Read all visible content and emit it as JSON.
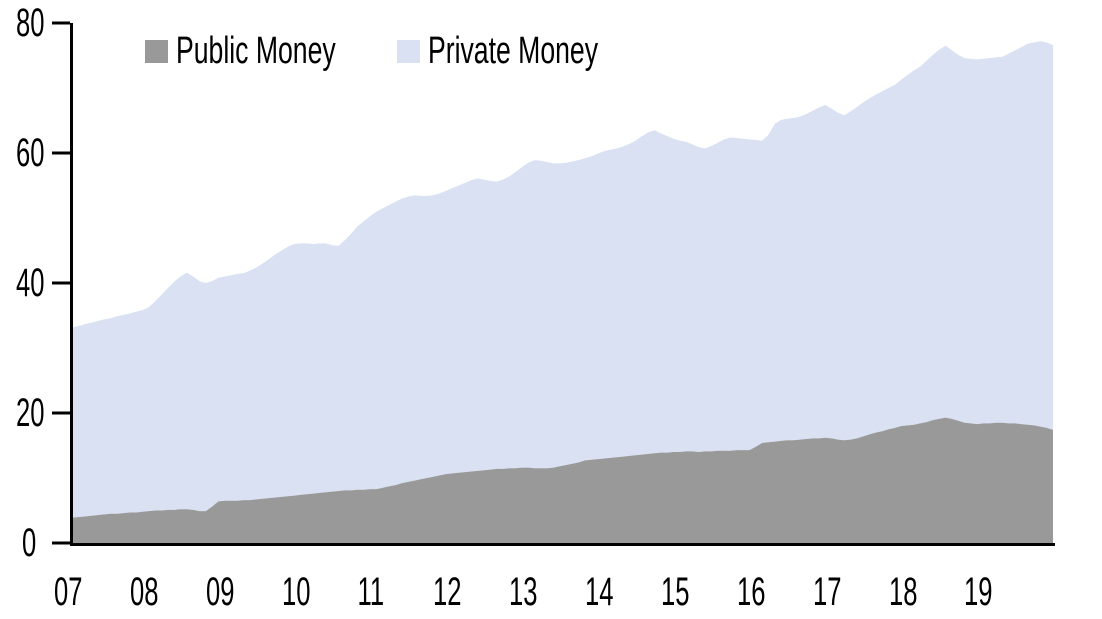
{
  "legend": {
    "items": [
      {
        "label": "Public Money",
        "color": "#999999"
      },
      {
        "label": "Private Money",
        "color": "#D9E1F2"
      }
    ]
  },
  "y_axis": {
    "tick_labels": [
      "0",
      "20",
      "40",
      "60",
      "80"
    ]
  },
  "x_axis": {
    "tick_labels": [
      "07",
      "08",
      "09",
      "10",
      "11",
      "12",
      "13",
      "14",
      "15",
      "16",
      "17",
      "18",
      "19"
    ]
  },
  "chart_data": {
    "type": "area",
    "stacked": true,
    "title": "",
    "xlabel": "",
    "ylabel": "",
    "x_unit": "monthly, Jan 2007 - Dec 2019",
    "x_tick_labels": [
      "07",
      "08",
      "09",
      "10",
      "11",
      "12",
      "13",
      "14",
      "15",
      "16",
      "17",
      "18",
      "19"
    ],
    "ylim": [
      0,
      80
    ],
    "yticks": [
      0,
      20,
      40,
      60,
      80
    ],
    "grid": false,
    "legend_position": "top-left-inside",
    "axis_color": "#000000",
    "background_color": "#ffffff",
    "series": [
      {
        "name": "Public Money",
        "color": "#999999",
        "values": [
          3.9,
          4.0,
          4.1,
          4.2,
          4.3,
          4.4,
          4.5,
          4.5,
          4.6,
          4.7,
          4.7,
          4.8,
          4.9,
          5.0,
          5.0,
          5.1,
          5.1,
          5.2,
          5.2,
          5.1,
          4.9,
          4.9,
          5.6,
          6.4,
          6.5,
          6.5,
          6.5,
          6.6,
          6.6,
          6.7,
          6.8,
          6.9,
          7.0,
          7.1,
          7.2,
          7.3,
          7.4,
          7.5,
          7.6,
          7.7,
          7.8,
          7.9,
          8.0,
          8.1,
          8.1,
          8.2,
          8.2,
          8.3,
          8.3,
          8.5,
          8.7,
          8.9,
          9.2,
          9.4,
          9.6,
          9.8,
          10.0,
          10.2,
          10.4,
          10.6,
          10.7,
          10.8,
          10.9,
          11.0,
          11.1,
          11.2,
          11.3,
          11.4,
          11.4,
          11.5,
          11.5,
          11.6,
          11.6,
          11.5,
          11.5,
          11.5,
          11.6,
          11.8,
          12.0,
          12.2,
          12.4,
          12.7,
          12.8,
          12.9,
          13.0,
          13.1,
          13.2,
          13.3,
          13.4,
          13.5,
          13.6,
          13.7,
          13.8,
          13.9,
          13.9,
          14.0,
          14.0,
          14.1,
          14.1,
          14.0,
          14.1,
          14.1,
          14.2,
          14.2,
          14.2,
          14.3,
          14.3,
          14.3,
          14.8,
          15.4,
          15.5,
          15.6,
          15.7,
          15.8,
          15.8,
          15.9,
          16.0,
          16.1,
          16.1,
          16.2,
          16.1,
          15.9,
          15.8,
          15.9,
          16.1,
          16.4,
          16.7,
          17.0,
          17.2,
          17.5,
          17.7,
          18.0,
          18.1,
          18.2,
          18.4,
          18.6,
          18.9,
          19.1,
          19.3,
          19.1,
          18.8,
          18.5,
          18.4,
          18.3,
          18.4,
          18.4,
          18.5,
          18.5,
          18.4,
          18.4,
          18.3,
          18.2,
          18.1,
          17.9,
          17.7,
          17.4
        ]
      },
      {
        "name": "Private Money",
        "color": "#D9E1F2",
        "values": [
          29.3,
          29.4,
          29.6,
          29.7,
          29.9,
          30.0,
          30.1,
          30.4,
          30.5,
          30.6,
          30.9,
          31.0,
          31.4,
          32.2,
          33.2,
          34.1,
          35.1,
          35.8,
          36.4,
          35.9,
          35.4,
          35.1,
          34.7,
          34.4,
          34.5,
          34.7,
          34.9,
          34.9,
          35.3,
          35.7,
          36.2,
          36.8,
          37.4,
          37.9,
          38.4,
          38.7,
          38.7,
          38.6,
          38.4,
          38.4,
          38.3,
          37.9,
          37.7,
          38.5,
          39.5,
          40.5,
          41.3,
          42.0,
          42.7,
          43.0,
          43.3,
          43.6,
          43.8,
          43.9,
          43.9,
          43.6,
          43.4,
          43.3,
          43.4,
          43.6,
          43.9,
          44.2,
          44.5,
          44.8,
          45.0,
          44.7,
          44.4,
          44.2,
          44.5,
          44.9,
          45.6,
          46.2,
          46.9,
          47.4,
          47.3,
          47.1,
          46.8,
          46.6,
          46.5,
          46.5,
          46.5,
          46.5,
          46.7,
          47.0,
          47.3,
          47.4,
          47.5,
          47.7,
          48.0,
          48.4,
          49.0,
          49.5,
          49.7,
          49.1,
          48.7,
          48.2,
          47.9,
          47.6,
          47.2,
          46.9,
          46.6,
          47.0,
          47.4,
          47.9,
          48.2,
          48.0,
          47.9,
          47.8,
          47.2,
          46.5,
          47.3,
          48.9,
          49.4,
          49.5,
          49.6,
          49.7,
          50.0,
          50.4,
          50.9,
          51.2,
          50.7,
          50.3,
          50.0,
          50.5,
          51.0,
          51.4,
          51.7,
          52.0,
          52.3,
          52.5,
          52.8,
          53.3,
          53.9,
          54.5,
          54.9,
          55.6,
          56.2,
          56.8,
          57.2,
          56.7,
          56.3,
          56.1,
          56.1,
          56.1,
          56.1,
          56.2,
          56.2,
          56.3,
          56.9,
          57.4,
          58.0,
          58.6,
          58.9,
          59.3,
          59.3,
          59.2
        ]
      }
    ]
  }
}
